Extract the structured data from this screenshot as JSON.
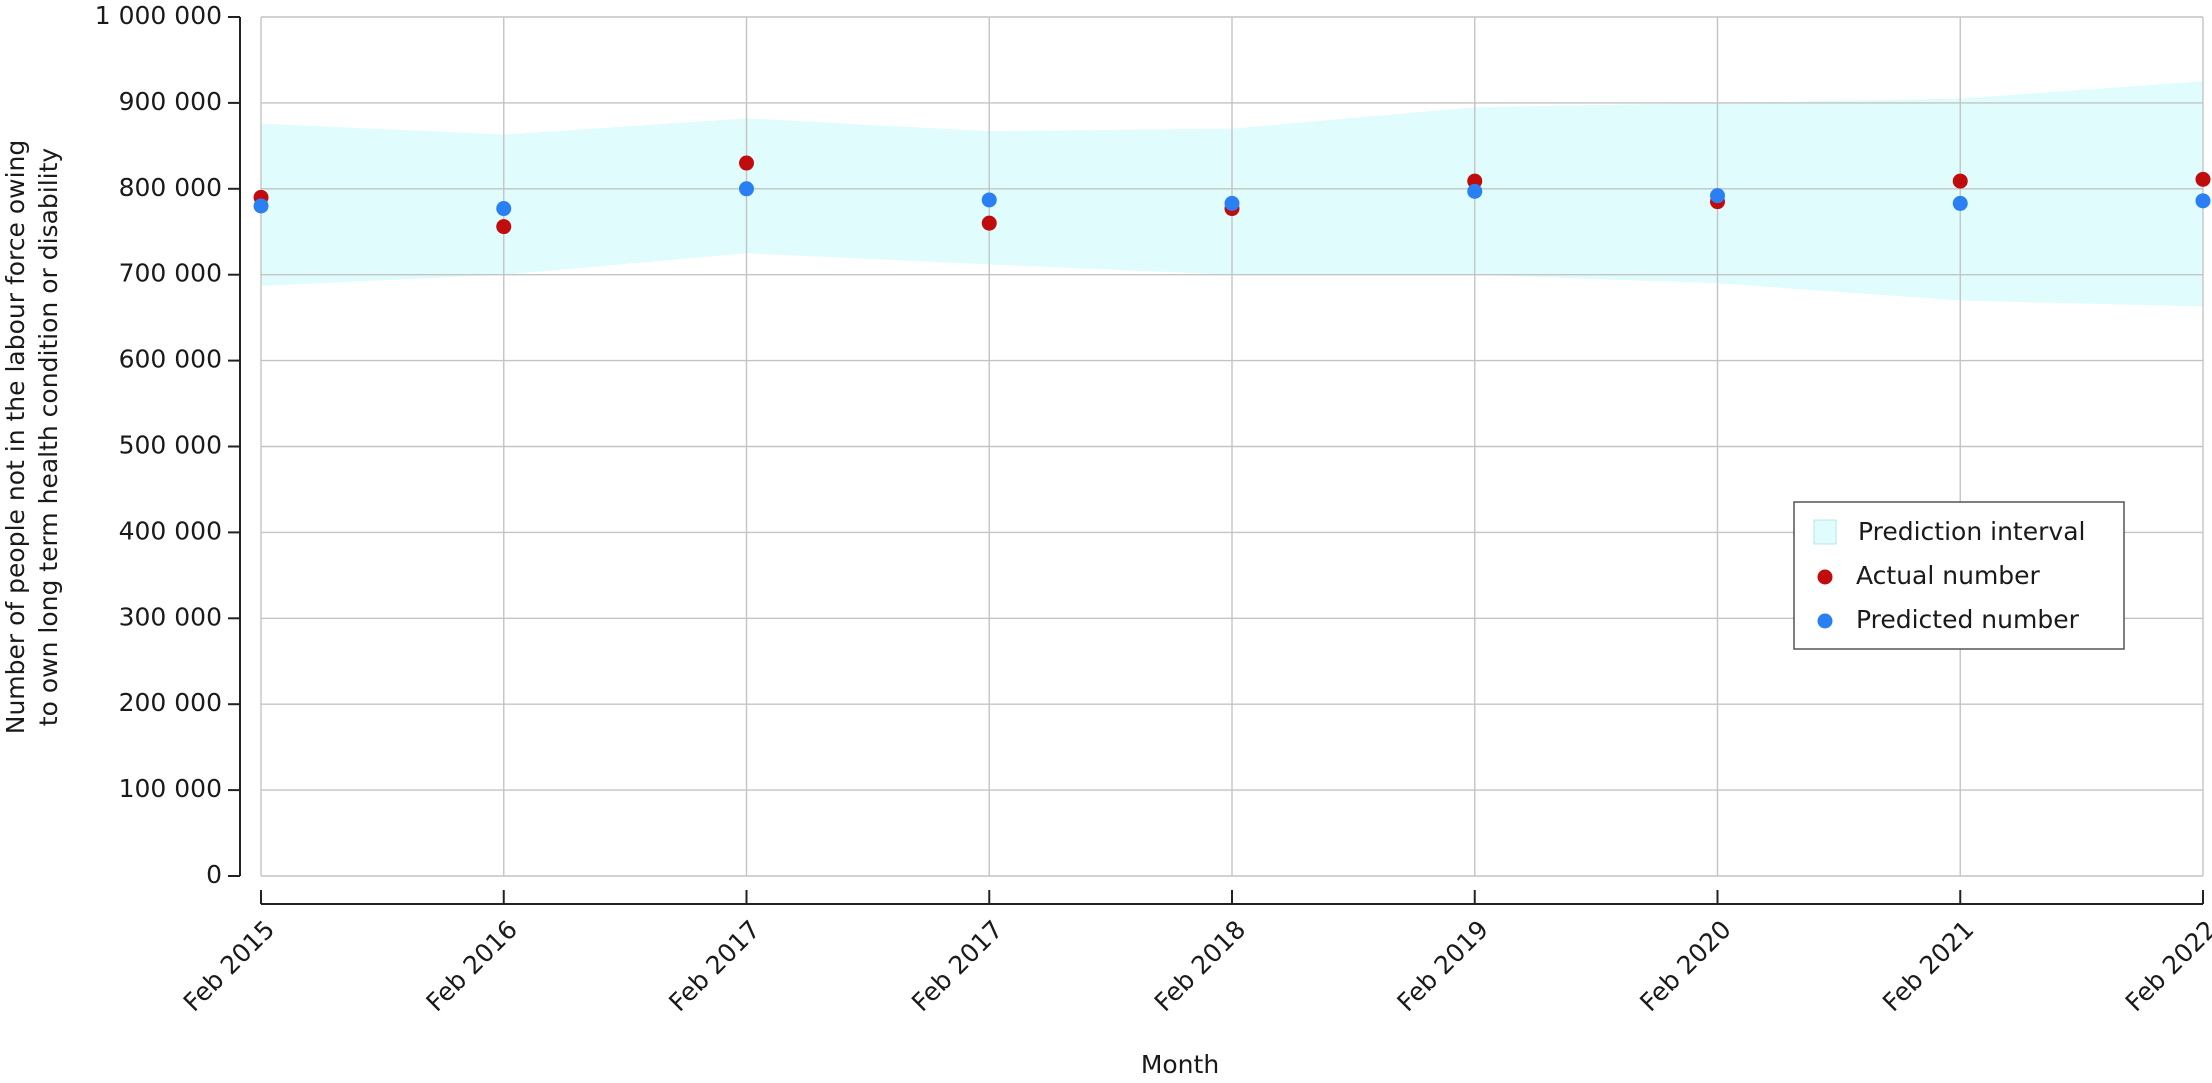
{
  "chart_data": {
    "type": "scatter",
    "ylabel": [
      "Number of people not in the labour force owing",
      "to own long term health condition or disability"
    ],
    "xlabel": "Month",
    "categories": [
      "Feb 2015",
      "Feb 2016",
      "Feb 2017",
      "Feb 2017",
      "Feb 2018",
      "Feb 2019",
      "Feb 2020",
      "Feb 2021",
      "Feb 2022"
    ],
    "band": {
      "name": "Prediction interval",
      "color": "#e0fcfc",
      "upper": [
        876000,
        863000,
        882000,
        867000,
        870000,
        895000,
        900000,
        905000,
        925000
      ],
      "lower": [
        687000,
        700000,
        725000,
        712000,
        700000,
        700000,
        690000,
        670000,
        663000
      ]
    },
    "series": [
      {
        "name": "Actual number",
        "color": "#c00c0c",
        "values": [
          790000,
          756000,
          830000,
          760000,
          777000,
          809000,
          785000,
          809000,
          811000
        ]
      },
      {
        "name": "Predicted number",
        "color": "#2a7ff2",
        "values": [
          780000,
          777000,
          800000,
          787000,
          783000,
          797000,
          792000,
          783000,
          786000
        ]
      }
    ],
    "ylim": [
      0,
      1000000
    ],
    "yticks": [
      0,
      {
        "value": 100000,
        "label": "100 000"
      },
      {
        "value": 200000,
        "label": "200 000"
      },
      {
        "value": 300000,
        "label": "300 000"
      },
      {
        "value": 400000,
        "label": "400 000"
      },
      {
        "value": 500000,
        "label": "500 000"
      },
      {
        "value": 600000,
        "label": "600 000"
      },
      {
        "value": 700000,
        "label": "700 000"
      },
      {
        "value": 800000,
        "label": "800 000"
      },
      {
        "value": 900000,
        "label": "900 000"
      },
      {
        "value": 1000000,
        "label": "1 000 000"
      }
    ],
    "grid": true,
    "legend": "right"
  }
}
